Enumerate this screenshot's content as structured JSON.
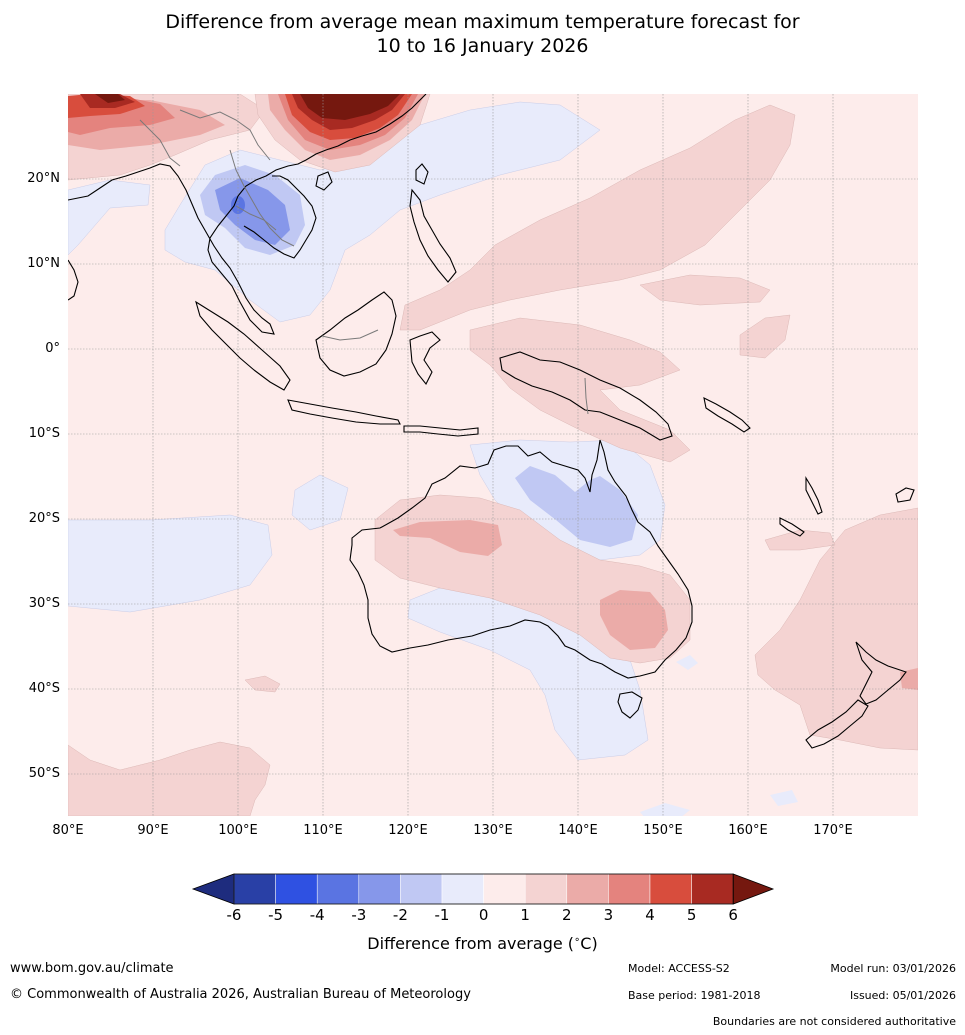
{
  "title": {
    "line1": "Difference from average mean maximum temperature forecast for",
    "line2": "10 to 16 January 2026"
  },
  "map": {
    "lat_labels": [
      "20°N",
      "10°N",
      "0°",
      "10°S",
      "20°S",
      "30°S",
      "40°S",
      "50°S"
    ],
    "lon_labels": [
      "80°E",
      "90°E",
      "100°E",
      "110°E",
      "120°E",
      "130°E",
      "140°E",
      "150°E",
      "160°E",
      "170°E"
    ],
    "lon_range": [
      80,
      180
    ],
    "lat_range": [
      -55,
      30
    ]
  },
  "colorbar": {
    "ticks": [
      "-6",
      "-5",
      "-4",
      "-3",
      "-2",
      "-1",
      "0",
      "1",
      "2",
      "3",
      "4",
      "5",
      "6"
    ],
    "colors": [
      "#2940a6",
      "#2f51e2",
      "#5a74e2",
      "#8697ea",
      "#c0c8f3",
      "#e8ebfb",
      "#fdeceb",
      "#f4d3d2",
      "#ebaba8",
      "#e4837e",
      "#d84d3d",
      "#a82a22"
    ],
    "under_color": "#1e2c7e",
    "over_color": "#75180f",
    "label": "Difference from average (",
    "label_unit": "C)",
    "label_degree": "∘"
  },
  "footer": {
    "website": "www.bom.gov.au/climate",
    "copyright": "© Commonwealth of Australia 2026, Australian Bureau of Meteorology",
    "model": "Model: ACCESS-S2",
    "base_period": "Base period: 1981-2018",
    "model_run": "Model run: 03/01/2026",
    "issued": "Issued: 05/01/2026",
    "boundaries_note": "Boundaries are not considered authoritative"
  }
}
